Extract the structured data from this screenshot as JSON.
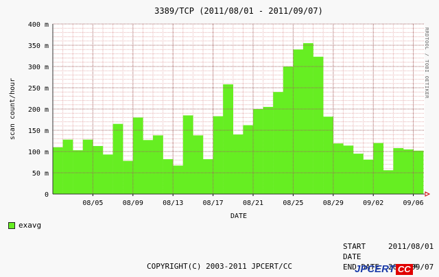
{
  "chart_data": {
    "type": "bar",
    "title": "3389/TCP (2011/08/01 - 2011/09/07)",
    "xlabel": "DATE",
    "ylabel": "scan count/hour",
    "ylim": [
      0,
      400
    ],
    "yticks": [
      0,
      50,
      100,
      150,
      200,
      250,
      300,
      350,
      400
    ],
    "ytick_labels": [
      "0",
      "50 m",
      "100 m",
      "150 m",
      "200 m",
      "250 m",
      "300 m",
      "350 m",
      "400 m"
    ],
    "xtick_labels": [
      "08/05",
      "08/09",
      "08/13",
      "08/17",
      "08/21",
      "08/25",
      "08/29",
      "09/02",
      "09/06"
    ],
    "xtick_day_index": [
      4,
      8,
      12,
      16,
      20,
      24,
      28,
      32,
      36
    ],
    "grid": true,
    "legend_position": "bottom-left",
    "series": [
      {
        "name": "exavg",
        "color": "#66ee22",
        "categories": [
          "08/01",
          "08/02",
          "08/03",
          "08/04",
          "08/05",
          "08/06",
          "08/07",
          "08/08",
          "08/09",
          "08/10",
          "08/11",
          "08/12",
          "08/13",
          "08/14",
          "08/15",
          "08/16",
          "08/17",
          "08/18",
          "08/19",
          "08/20",
          "08/21",
          "08/22",
          "08/23",
          "08/24",
          "08/25",
          "08/26",
          "08/27",
          "08/28",
          "08/29",
          "08/30",
          "08/31",
          "09/01",
          "09/02",
          "09/03",
          "09/04",
          "09/05",
          "09/06"
        ],
        "values": [
          110,
          128,
          103,
          128,
          113,
          93,
          165,
          78,
          180,
          127,
          138,
          82,
          67,
          185,
          138,
          82,
          183,
          258,
          140,
          162,
          200,
          205,
          240,
          300,
          340,
          355,
          323,
          182,
          119,
          114,
          95,
          81,
          120,
          56,
          108,
          105,
          102
        ]
      }
    ]
  },
  "side_text": "RRDTOOL / TOBI OETIKER",
  "legend": {
    "label": "exavg"
  },
  "footer": {
    "start_label": "START DATE",
    "start_value": "2011/08/01",
    "end_label": "END DATE",
    "end_value": "2011/09/07",
    "copyright": "COPYRIGHT(C) 2003-2011 JPCERT/CC",
    "logo_left": "JPCERT",
    "logo_right": "CC",
    "logo_reg": "®"
  },
  "colors": {
    "bar": "#66ee22",
    "minor_grid": "#e6b0b0",
    "major_grid": "#a06060",
    "axis_arrow": "#cc0000"
  }
}
